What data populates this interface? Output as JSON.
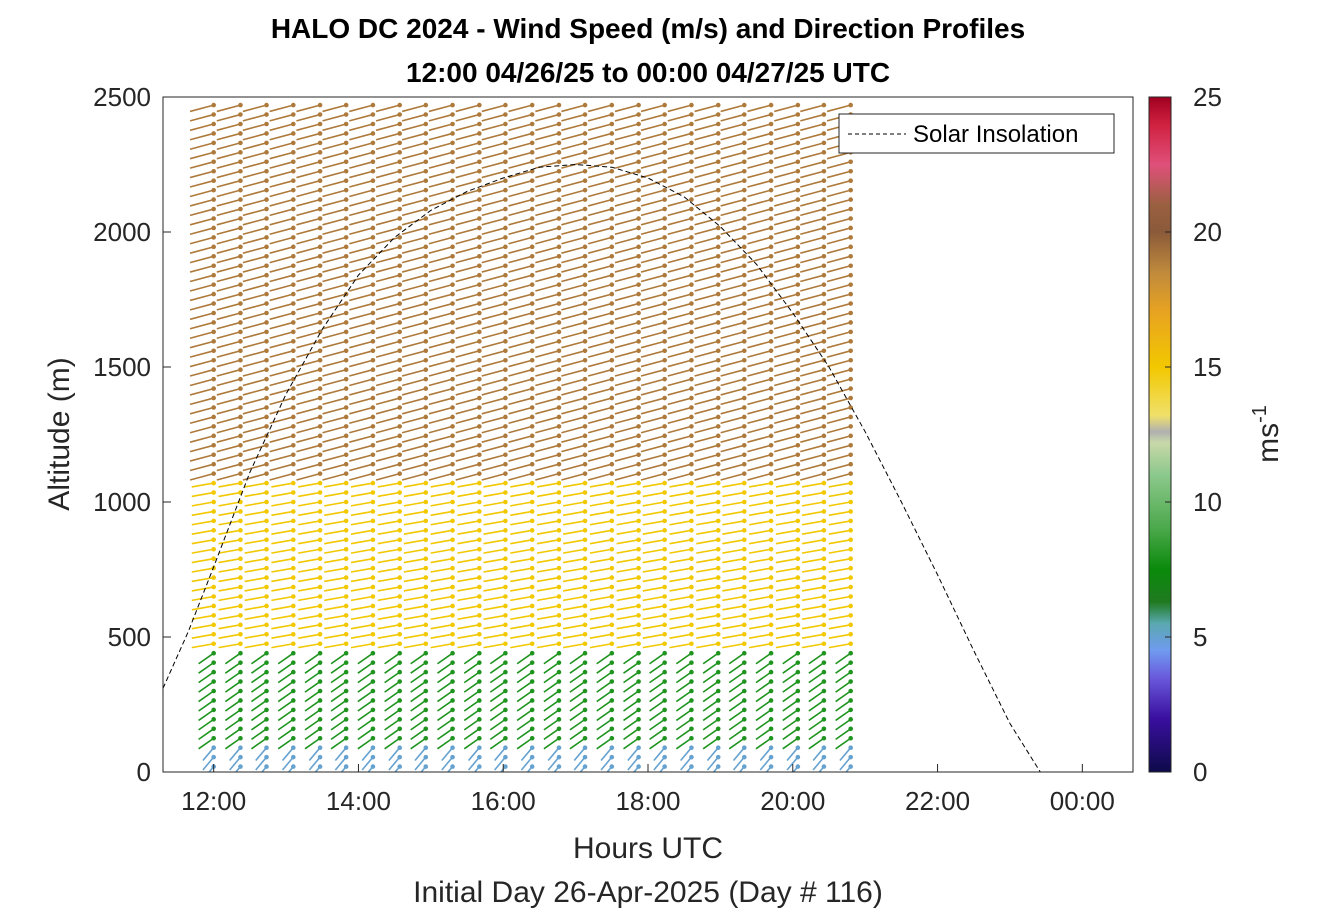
{
  "chart_data": {
    "type": "quiver-profile",
    "title": "HALO DC 2024 - Wind Speed (m/s) and Direction Profiles",
    "subtitle": "12:00 04/26/25 to 00:00 04/27/25  UTC",
    "xlabel": "Hours UTC",
    "xlabel2": "Initial Day 26-Apr-2025 (Day # 116)",
    "ylabel": "Altitude (m)",
    "xlim_hours": [
      11.3,
      24.7
    ],
    "ylim": [
      0,
      2500
    ],
    "x_ticks": [
      {
        "hour": 12,
        "label": "12:00"
      },
      {
        "hour": 14,
        "label": "14:00"
      },
      {
        "hour": 16,
        "label": "16:00"
      },
      {
        "hour": 18,
        "label": "18:00"
      },
      {
        "hour": 20,
        "label": "20:00"
      },
      {
        "hour": 22,
        "label": "22:00"
      },
      {
        "hour": 24,
        "label": "00:00"
      }
    ],
    "y_ticks": [
      0,
      500,
      1000,
      1500,
      2000,
      2500
    ],
    "legend": {
      "entries": [
        "Solar Insolation"
      ],
      "position": "top-right"
    },
    "colorbar": {
      "label": "ms",
      "label_exponent": "-1",
      "range": [
        0,
        25
      ],
      "ticks": [
        0,
        5,
        10,
        15,
        20,
        25
      ]
    },
    "series": [
      {
        "name": "Solar Insolation",
        "style": "dashed",
        "color": "#000000",
        "points": [
          [
            11.3,
            310
          ],
          [
            11.65,
            520
          ],
          [
            12.0,
            760
          ],
          [
            12.5,
            1110
          ],
          [
            13.0,
            1400
          ],
          [
            13.5,
            1640
          ],
          [
            14.0,
            1840
          ],
          [
            14.5,
            1980
          ],
          [
            15.0,
            2080
          ],
          [
            15.5,
            2150
          ],
          [
            16.0,
            2200
          ],
          [
            16.5,
            2240
          ],
          [
            17.0,
            2250
          ],
          [
            17.5,
            2240
          ],
          [
            18.0,
            2200
          ],
          [
            18.5,
            2130
          ],
          [
            19.0,
            2020
          ],
          [
            19.5,
            1880
          ],
          [
            20.0,
            1700
          ],
          [
            20.5,
            1500
          ],
          [
            21.0,
            1260
          ],
          [
            21.5,
            1000
          ],
          [
            22.0,
            730
          ],
          [
            22.5,
            450
          ],
          [
            23.0,
            180
          ],
          [
            23.42,
            0
          ],
          [
            24.65,
            0
          ]
        ]
      }
    ],
    "wind_profiles": {
      "times_hours": [
        12.0,
        12.37,
        12.73,
        13.1,
        13.47,
        13.83,
        14.2,
        14.57,
        14.93,
        15.3,
        15.67,
        16.03,
        16.4,
        16.77,
        17.13,
        17.5,
        17.87,
        18.23,
        18.6,
        18.97,
        19.33,
        19.7,
        20.07,
        20.43,
        20.8
      ],
      "altitude_step_m": 35,
      "layers": [
        {
          "top_m": 120,
          "speed_ms": 5,
          "dir_deg": 220
        },
        {
          "top_m": 450,
          "speed_ms": 8,
          "dir_deg": 235
        },
        {
          "top_m": 1100,
          "speed_ms": 15,
          "dir_deg": 260
        },
        {
          "top_m": 2500,
          "speed_ms": 19,
          "dir_deg": 255
        }
      ]
    },
    "colormap": [
      [
        0,
        "#0d0a4a"
      ],
      [
        2,
        "#3a0fa0"
      ],
      [
        3.5,
        "#6a5adc"
      ],
      [
        4.5,
        "#6f9bf0"
      ],
      [
        5.5,
        "#5aa8b0"
      ],
      [
        6.3,
        "#1f7a1f"
      ],
      [
        7.5,
        "#0a8a0a"
      ],
      [
        9,
        "#4aa84a"
      ],
      [
        11,
        "#8cc88c"
      ],
      [
        12.2,
        "#c8d8a8"
      ],
      [
        12.6,
        "#b0b0b0"
      ],
      [
        13.2,
        "#f0e06a"
      ],
      [
        15,
        "#f2c800"
      ],
      [
        17,
        "#e8a420"
      ],
      [
        18.5,
        "#c08a3c"
      ],
      [
        20,
        "#8a5a3a"
      ],
      [
        21,
        "#9a6040"
      ],
      [
        22.5,
        "#e0507a"
      ],
      [
        24,
        "#d02040"
      ],
      [
        25,
        "#a00020"
      ]
    ]
  }
}
